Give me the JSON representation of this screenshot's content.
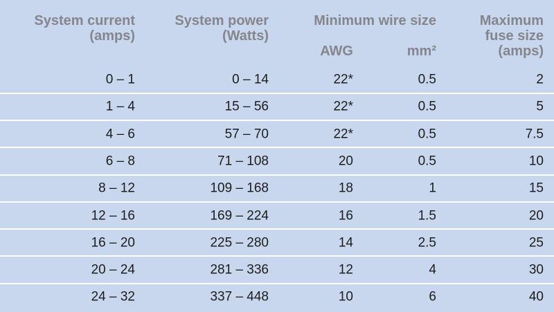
{
  "table": {
    "header": {
      "system_current": [
        "System current",
        "(amps)"
      ],
      "system_power": [
        "System power",
        "(Watts)"
      ],
      "wire_size": "Minimum wire size",
      "awg": "AWG",
      "mm2": "mm²",
      "fuse": [
        "Maximum",
        "fuse size",
        "(amps)"
      ]
    },
    "rows": [
      [
        "0 – 1",
        "0 – 14",
        "22*",
        "0.5",
        "2"
      ],
      [
        "1 – 4",
        "15 – 56",
        "22*",
        "0.5",
        "5"
      ],
      [
        "4 – 6",
        "57 – 70",
        "22*",
        "0.5",
        "7.5"
      ],
      [
        "6 – 8",
        "71 – 108",
        "20",
        "0.5",
        "10"
      ],
      [
        "8 – 12",
        "109 – 168",
        "18",
        "1",
        "15"
      ],
      [
        "12 – 16",
        "169 – 224",
        "16",
        "1.5",
        "20"
      ],
      [
        "16 – 20",
        "225 – 280",
        "14",
        "2.5",
        "25"
      ],
      [
        "20 – 24",
        "281 – 336",
        "12",
        "4",
        "30"
      ],
      [
        "24 – 32",
        "337 – 448",
        "10",
        "6",
        "40"
      ]
    ]
  }
}
